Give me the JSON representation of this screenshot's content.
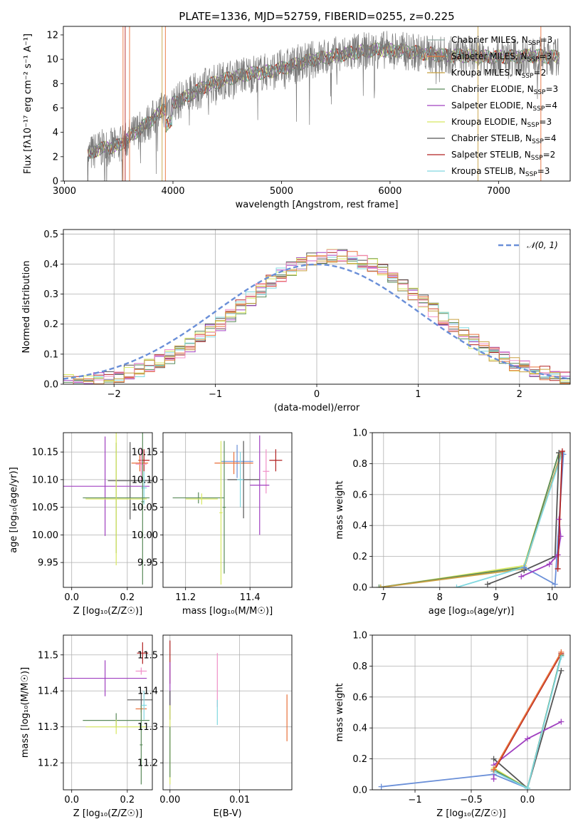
{
  "chart_data": [
    {
      "id": "spectrum",
      "type": "line",
      "title": "PLATE=1336, MJD=52759, FIBERID=0255, z=0.225",
      "xlabel": "wavelength [Angstrom, rest frame]",
      "ylabel": "Flux [fλ10⁻¹⁷ erg cm⁻² s⁻¹ A⁻¹]",
      "xlim": [
        2990,
        7660
      ],
      "ylim": [
        0,
        12.7
      ],
      "xticks": [
        3000,
        4000,
        5000,
        6000,
        7000
      ],
      "yticks": [
        0,
        2,
        4,
        6,
        8,
        10,
        12
      ],
      "grid": false,
      "legend_position": "upper right",
      "series": [
        {
          "name": "Chabrier MILES, N_SSP=3",
          "color": "#8fa9a0"
        },
        {
          "name": "Salpeter MILES, N_SSP=3",
          "color": "#e8703a"
        },
        {
          "name": "Kroupa MILES, N_SSP=2",
          "color": "#c8a040"
        },
        {
          "name": "Chabrier ELODIE, N_SSP=3",
          "color": "#5a8a5a"
        },
        {
          "name": "Salpeter ELODIE, N_SSP=4",
          "color": "#a040c0"
        },
        {
          "name": "Kroupa ELODIE, N_SSP=3",
          "color": "#d8e860"
        },
        {
          "name": "Chabrier STELIB, N_SSP=4",
          "color": "#555555"
        },
        {
          "name": "Salpeter STELIB, N_SSP=2",
          "color": "#b02020"
        },
        {
          "name": "Kroupa STELIB, N_SSP=3",
          "color": "#80d8e0"
        }
      ],
      "data_envelope": {
        "x": [
          3200,
          3300,
          3500,
          3600,
          3800,
          3950,
          4100,
          4300,
          4500,
          4700,
          4900,
          5100,
          5300,
          5500,
          5700,
          5900,
          6100,
          6300,
          6500,
          6700,
          6900,
          7100,
          7300,
          7500
        ],
        "y": [
          2.0,
          2.6,
          2.9,
          3.6,
          5.0,
          6.2,
          6.8,
          7.8,
          8.4,
          8.8,
          9.0,
          9.5,
          10.0,
          10.3,
          10.6,
          10.8,
          10.7,
          10.5,
          10.3,
          10.3,
          10.2,
          10.2,
          10.3,
          10.2
        ]
      }
    },
    {
      "id": "residuals",
      "type": "histogram",
      "xlabel": "(data-model)/error",
      "ylabel": "Normed distribution",
      "xlim": [
        -2.5,
        2.5
      ],
      "ylim": [
        0,
        0.515
      ],
      "xticks": [
        -2,
        -1,
        0,
        1,
        2
      ],
      "yticks": [
        0.0,
        0.1,
        0.2,
        0.3,
        0.4,
        0.5
      ],
      "grid": true,
      "legend_position": "upper right",
      "legend": [
        "𝒩(0, 1)"
      ],
      "reference_curve": {
        "name": "𝒩(0, 1)",
        "mean": 0,
        "sigma": 1,
        "color": "#6a8fd8"
      },
      "bin_edges_range": [
        -2.5,
        2.5
      ],
      "bin_width": 0.1
    },
    {
      "id": "age_vs_Z",
      "type": "errorbar",
      "xlabel": "Z [log₁₀(Z/Z☉)]",
      "ylabel": "age  [log₁₀(age/yr)]",
      "xlim": [
        -0.03,
        0.29
      ],
      "ylim": [
        9.905,
        10.185
      ],
      "xticks": [
        0.0,
        0.2
      ],
      "yticks": [
        9.95,
        10.0,
        10.05,
        10.1,
        10.15
      ],
      "points": [
        {
          "x": 0.26,
          "y": 10.135,
          "xerr": 0.02,
          "yerr": 0.02,
          "color": "#b02020"
        },
        {
          "x": 0.245,
          "y": 10.13,
          "xerr": 0.03,
          "yerr": 0.015,
          "color": "#e8703a"
        },
        {
          "x": 0.25,
          "y": 10.128,
          "xerr": 0.02,
          "yerr": 0.03,
          "color": "#f090c8"
        },
        {
          "x": 0.21,
          "y": 10.098,
          "xerr": 0.08,
          "yerr": 0.07,
          "color": "#555555"
        },
        {
          "x": 0.12,
          "y": 10.088,
          "xerr": 0.16,
          "yerr": 0.09,
          "color": "#a040c0"
        },
        {
          "x": 0.26,
          "y": 10.085,
          "xerr": 0.01,
          "yerr": 0.03,
          "color": "#80d8e0"
        },
        {
          "x": 0.16,
          "y": 10.067,
          "xerr": 0.12,
          "yerr": 0.1,
          "color": "#5a8a5a"
        },
        {
          "x": 0.16,
          "y": 10.065,
          "xerr": 0.11,
          "yerr": 0.12,
          "color": "#d8e860"
        },
        {
          "x": 0.255,
          "y": 10.06,
          "xerr": 0.005,
          "yerr": 0.15,
          "color": "#5a8a5a"
        }
      ]
    },
    {
      "id": "age_vs_mass",
      "type": "errorbar",
      "xlabel": "mass [log₁₀(M/M☉)]",
      "ylabel": "",
      "xlim": [
        11.13,
        11.53
      ],
      "ylim": [
        9.905,
        10.185
      ],
      "xticks": [
        11.2,
        11.4
      ],
      "yticks": [
        9.95,
        10.0,
        10.05,
        10.1,
        10.15
      ],
      "points": [
        {
          "x": 11.48,
          "y": 10.135,
          "xerr": 0.02,
          "yerr": 0.02,
          "color": "#b02020"
        },
        {
          "x": 11.36,
          "y": 10.133,
          "xerr": 0.05,
          "yerr": 0.03,
          "color": "#6a8fd8"
        },
        {
          "x": 11.35,
          "y": 10.13,
          "xerr": 0.06,
          "yerr": 0.02,
          "color": "#e8703a"
        },
        {
          "x": 11.45,
          "y": 10.115,
          "xerr": 0.01,
          "yerr": 0.04,
          "color": "#f090c8"
        },
        {
          "x": 11.38,
          "y": 10.1,
          "xerr": 0.05,
          "yerr": 0.07,
          "color": "#555555"
        },
        {
          "x": 11.43,
          "y": 10.09,
          "xerr": 0.03,
          "yerr": 0.09,
          "color": "#a040c0"
        },
        {
          "x": 11.37,
          "y": 10.1,
          "xerr": 0.01,
          "yerr": 0.05,
          "color": "#80d8e0"
        },
        {
          "x": 11.24,
          "y": 10.067,
          "xerr": 0.08,
          "yerr": 0.01,
          "color": "#5a8a5a"
        },
        {
          "x": 11.25,
          "y": 10.065,
          "xerr": 0.05,
          "yerr": 0.01,
          "color": "#d8e860"
        },
        {
          "x": 11.32,
          "y": 10.05,
          "xerr": 0.005,
          "yerr": 0.12,
          "color": "#5a8a5a"
        },
        {
          "x": 11.31,
          "y": 10.04,
          "xerr": 0.005,
          "yerr": 0.13,
          "color": "#d8e860"
        }
      ]
    },
    {
      "id": "massweight_vs_age",
      "type": "line",
      "xlabel": "age  [log₁₀(age/yr)]",
      "ylabel": "mass weight",
      "xlim": [
        6.8,
        10.32
      ],
      "ylim": [
        0,
        1.0
      ],
      "xticks": [
        7,
        8,
        9,
        10
      ],
      "yticks": [
        0.0,
        0.2,
        0.4,
        0.6,
        0.8,
        1.0
      ],
      "grid": true,
      "series": [
        {
          "color": "#d8e860",
          "x": [
            6.95,
            9.5,
            10.12
          ],
          "y": [
            0.0,
            0.14,
            0.87
          ]
        },
        {
          "color": "#5a8a5a",
          "x": [
            6.92,
            9.5,
            10.12
          ],
          "y": [
            0.0,
            0.13,
            0.87
          ]
        },
        {
          "color": "#c8a040",
          "x": [
            6.95,
            9.5,
            10.15
          ],
          "y": [
            0.0,
            0.12,
            0.86
          ]
        },
        {
          "color": "#80d8e0",
          "x": [
            8.3,
            9.5,
            10.18
          ],
          "y": [
            0.0,
            0.13,
            0.87
          ]
        },
        {
          "color": "#555555",
          "x": [
            8.85,
            9.5,
            10.05,
            10.12
          ],
          "y": [
            0.02,
            0.11,
            0.2,
            0.87
          ]
        },
        {
          "color": "#6a8fd8",
          "x": [
            9.5,
            10.05,
            10.2
          ],
          "y": [
            0.13,
            0.02,
            0.86
          ]
        },
        {
          "color": "#a040c0",
          "x": [
            9.45,
            9.95,
            10.1,
            10.15,
            10.12
          ],
          "y": [
            0.07,
            0.15,
            0.21,
            0.33,
            0.44
          ]
        },
        {
          "color": "#b02020",
          "x": [
            10.1,
            10.18
          ],
          "y": [
            0.12,
            0.88
          ]
        }
      ]
    },
    {
      "id": "mass_vs_Z",
      "type": "errorbar",
      "xlabel": "Z [log₁₀(Z/Z☉)]",
      "ylabel": "mass [log₁₀(M/M☉)]",
      "xlim": [
        -0.03,
        0.29
      ],
      "ylim": [
        11.125,
        11.555
      ],
      "xticks": [
        0.0,
        0.2
      ],
      "yticks": [
        11.2,
        11.3,
        11.4,
        11.5
      ],
      "points": [
        {
          "x": 0.255,
          "y": 11.505,
          "xerr": 0.02,
          "yerr": 0.03,
          "color": "#b02020"
        },
        {
          "x": 0.25,
          "y": 11.455,
          "xerr": 0.02,
          "yerr": 0.01,
          "color": "#f090c8"
        },
        {
          "x": 0.12,
          "y": 11.435,
          "xerr": 0.15,
          "yerr": 0.05,
          "color": "#a040c0"
        },
        {
          "x": 0.25,
          "y": 11.375,
          "xerr": 0.05,
          "yerr": 0.02,
          "color": "#555555"
        },
        {
          "x": 0.25,
          "y": 11.35,
          "xerr": 0.02,
          "yerr": 0.01,
          "color": "#e8703a"
        },
        {
          "x": 0.26,
          "y": 11.36,
          "xerr": 0.01,
          "yerr": 0.04,
          "color": "#80d8e0"
        },
        {
          "x": 0.16,
          "y": 11.318,
          "xerr": 0.12,
          "yerr": 0.02,
          "color": "#5a8a5a"
        },
        {
          "x": 0.16,
          "y": 11.3,
          "xerr": 0.11,
          "yerr": 0.02,
          "color": "#d8e860"
        },
        {
          "x": 0.25,
          "y": 11.25,
          "xerr": 0.005,
          "yerr": 0.11,
          "color": "#5a8a5a"
        }
      ]
    },
    {
      "id": "mass_vs_EBV",
      "type": "errorbar",
      "xlabel": "E(B-V)",
      "ylabel": "",
      "xlim": [
        -0.001,
        0.0175
      ],
      "ylim": [
        11.125,
        11.555
      ],
      "xticks": [
        0.0,
        0.01
      ],
      "yticks": [
        11.2,
        11.3,
        11.4,
        11.5
      ],
      "points": [
        {
          "x": 0.0,
          "y": 11.48,
          "xerr": 0,
          "yerr": 0.06,
          "color": "#b02020"
        },
        {
          "x": 0.0,
          "y": 11.4,
          "xerr": 0,
          "yerr": 0.08,
          "color": "#a040c0"
        },
        {
          "x": 0.0,
          "y": 11.36,
          "xerr": 0,
          "yerr": 0.04,
          "color": "#555555"
        },
        {
          "x": 0.0,
          "y": 11.25,
          "xerr": 0,
          "yerr": 0.11,
          "color": "#d8e860"
        },
        {
          "x": 0.0,
          "y": 11.23,
          "xerr": 0,
          "yerr": 0.07,
          "color": "#5a8a5a"
        },
        {
          "x": 0.0068,
          "y": 11.43,
          "xerr": 0,
          "yerr": 0.075,
          "color": "#f090c8"
        },
        {
          "x": 0.0068,
          "y": 11.34,
          "xerr": 0,
          "yerr": 0.035,
          "color": "#80d8e0"
        },
        {
          "x": 0.0168,
          "y": 11.325,
          "xerr": 0,
          "yerr": 0.065,
          "color": "#e8703a"
        }
      ]
    },
    {
      "id": "massweight_vs_Z",
      "type": "line",
      "xlabel": "Z [log₁₀(Z/Z☉)]",
      "ylabel": "mass weight",
      "xlim": [
        -1.38,
        0.38
      ],
      "ylim": [
        0,
        1.0
      ],
      "xticks": [
        -1.0,
        -0.5,
        0.0
      ],
      "yticks": [
        0.0,
        0.2,
        0.4,
        0.6,
        0.8,
        1.0
      ],
      "grid": true,
      "series": [
        {
          "color": "#6a8fd8",
          "x": [
            -1.3,
            -0.3,
            0.0,
            0.3
          ],
          "y": [
            0.02,
            0.1,
            0.01,
            0.87
          ]
        },
        {
          "color": "#555555",
          "x": [
            -0.3,
            0.0,
            0.3
          ],
          "y": [
            0.2,
            0.01,
            0.77
          ]
        },
        {
          "color": "#a040c0",
          "x": [
            -0.3,
            -0.3,
            0.0,
            0.3
          ],
          "y": [
            0.07,
            0.16,
            0.33,
            0.44
          ]
        },
        {
          "color": "#b02020",
          "x": [
            -0.3,
            0.3
          ],
          "y": [
            0.12,
            0.88
          ]
        },
        {
          "color": "#d8e860",
          "x": [
            -0.3,
            0.0,
            0.3
          ],
          "y": [
            0.14,
            0.01,
            0.87
          ]
        },
        {
          "color": "#5a8a5a",
          "x": [
            -0.3,
            0.0,
            0.3
          ],
          "y": [
            0.13,
            0.01,
            0.87
          ]
        },
        {
          "color": "#80d8e0",
          "x": [
            -0.3,
            0.0,
            0.3
          ],
          "y": [
            0.12,
            0.01,
            0.86
          ]
        },
        {
          "color": "#e8703a",
          "x": [
            -0.3,
            0.3
          ],
          "y": [
            0.13,
            0.89
          ]
        }
      ]
    }
  ]
}
